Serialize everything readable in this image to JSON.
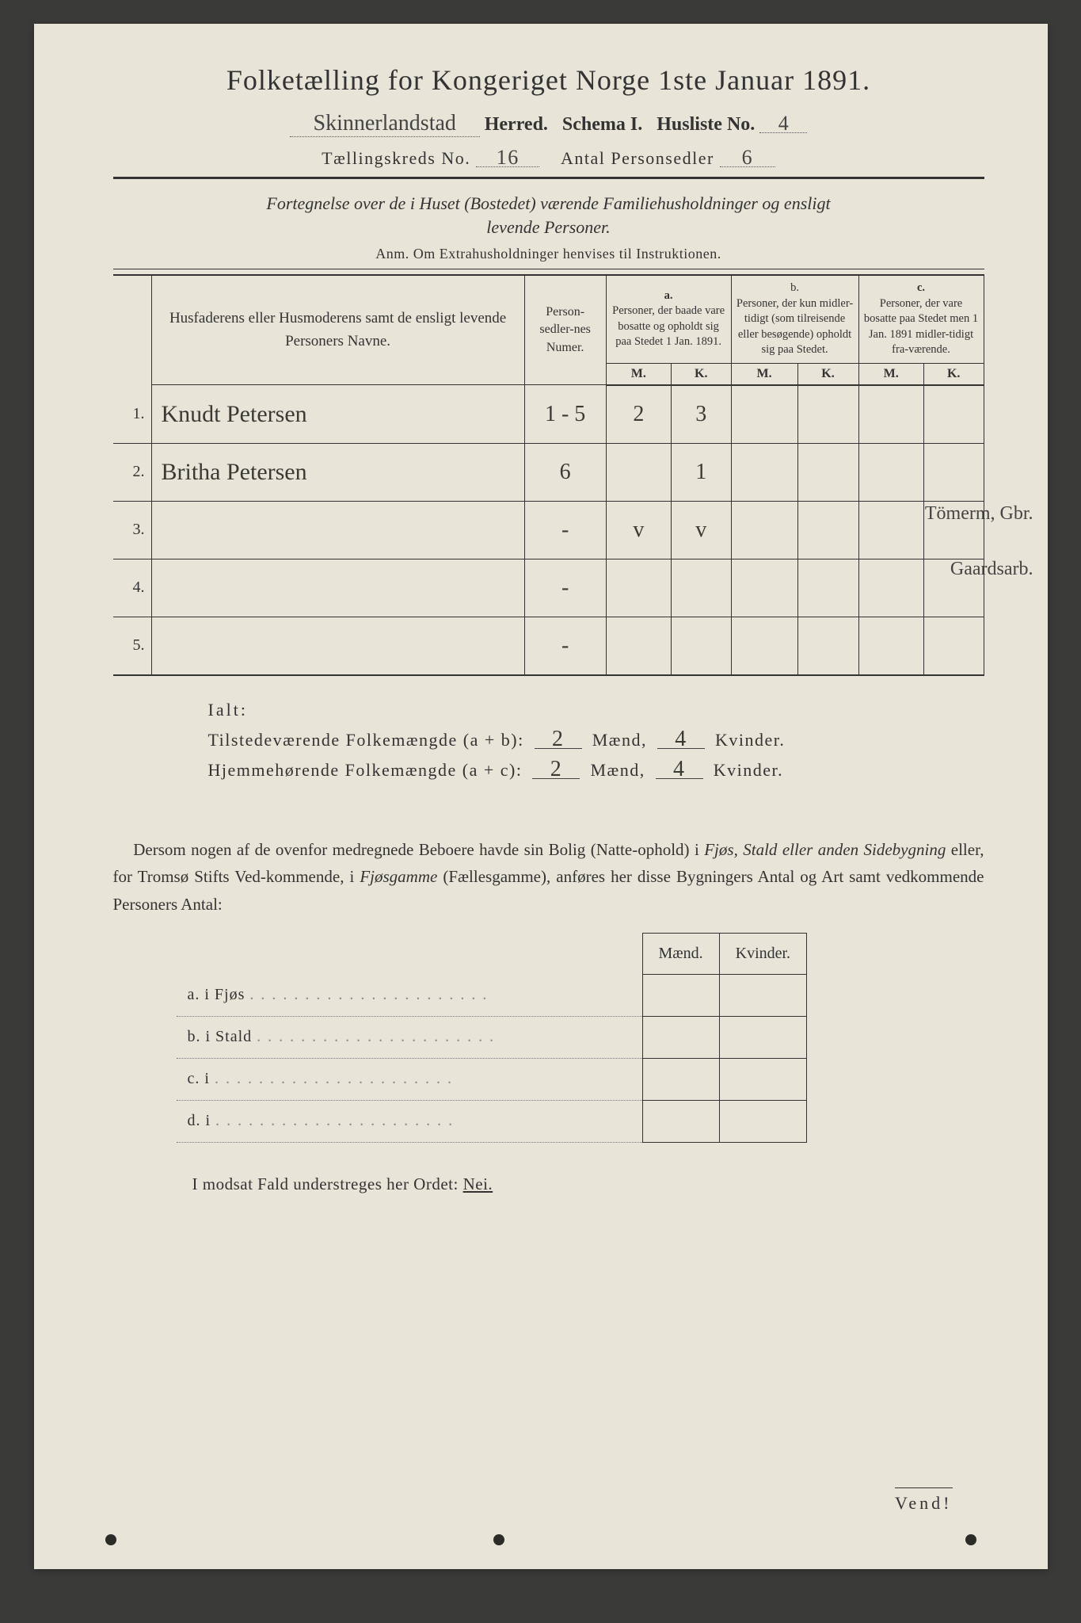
{
  "title": "Folketælling for Kongeriget Norge 1ste Januar 1891.",
  "header": {
    "herred_handwritten": "Skinnerlandstad",
    "herred_label": "Herred.",
    "schema_label": "Schema I.",
    "husliste_label": "Husliste No.",
    "husliste_no": "4",
    "kreds_label": "Tællingskreds No.",
    "kreds_no": "16",
    "antal_label": "Antal Personsedler",
    "antal_val": "6"
  },
  "subtitle1": "Fortegnelse over de i Huset (Bostedet) værende Familiehusholdninger og ensligt",
  "subtitle2": "levende Personer.",
  "anm": "Anm.  Om Extrahusholdninger henvises til Instruktionen.",
  "table": {
    "col_names": "Husfaderens eller Husmoderens samt de ensligt levende Personers Navne.",
    "col_numer": "Person-sedler-nes Numer.",
    "group_a_letter": "a.",
    "group_a": "Personer, der baade vare bosatte og opholdt sig paa Stedet 1 Jan. 1891.",
    "group_b_letter": "b.",
    "group_b": "Personer, der kun midler-tidigt (som tilreisende eller besøgende) opholdt sig paa Stedet.",
    "group_c_letter": "c.",
    "group_c": "Personer, der vare bosatte paa Stedet men 1 Jan. 1891 midler-tidigt fra-værende.",
    "M": "M.",
    "K": "K.",
    "rows": [
      {
        "n": "1.",
        "name": "Knudt Petersen",
        "numer": "1 - 5",
        "aM": "2",
        "aK": "3",
        "bM": "",
        "bK": "",
        "cM": "",
        "cK": "",
        "note": "Tömerm, Gbr."
      },
      {
        "n": "2.",
        "name": "Britha Petersen",
        "numer": "6",
        "aM": "",
        "aK": "1",
        "bM": "",
        "bK": "",
        "cM": "",
        "cK": "",
        "note": "Gaardsarb."
      },
      {
        "n": "3.",
        "name": "",
        "numer": "-",
        "aM": "v",
        "aK": "v",
        "bM": "",
        "bK": "",
        "cM": "",
        "cK": "",
        "note": ""
      },
      {
        "n": "4.",
        "name": "",
        "numer": "-",
        "aM": "",
        "aK": "",
        "bM": "",
        "bK": "",
        "cM": "",
        "cK": "",
        "note": ""
      },
      {
        "n": "5.",
        "name": "",
        "numer": "-",
        "aM": "",
        "aK": "",
        "bM": "",
        "bK": "",
        "cM": "",
        "cK": "",
        "note": ""
      }
    ]
  },
  "ialt": {
    "heading": "Ialt:",
    "line1_left": "Tilstedeværende Folkemængde (a + b):",
    "line2_left": "Hjemmehørende Folkemængde (a + c):",
    "m1": "2",
    "k1": "4",
    "m2": "2",
    "k2": "4",
    "maend": "Mænd,",
    "kvinder": "Kvinder."
  },
  "dersom": "Dersom nogen af de ovenfor medregnede Beboere havde sin Bolig (Natte-ophold) i Fjøs, Stald eller anden Sidebygning eller, for Tromsø Stifts Ved-kommende, i Fjøsgamme (Fællesgamme), anføres her disse Bygningers Antal og Art samt vedkommende Personers Antal:",
  "sidebyg": {
    "head_m": "Mænd.",
    "head_k": "Kvinder.",
    "rows": [
      {
        "lead": "a.   i      Fjøs"
      },
      {
        "lead": "b.   i      Stald"
      },
      {
        "lead": "c.   i"
      },
      {
        "lead": "d.   i"
      }
    ]
  },
  "modsat": {
    "text": "I modsat Fald understreges her Ordet:",
    "nei": "Nei."
  },
  "vend": "Vend!",
  "colors": {
    "paper": "#e8e4d8",
    "ink": "#333333",
    "bg": "#3a3a38",
    "handwriting": "#3a3a35"
  }
}
